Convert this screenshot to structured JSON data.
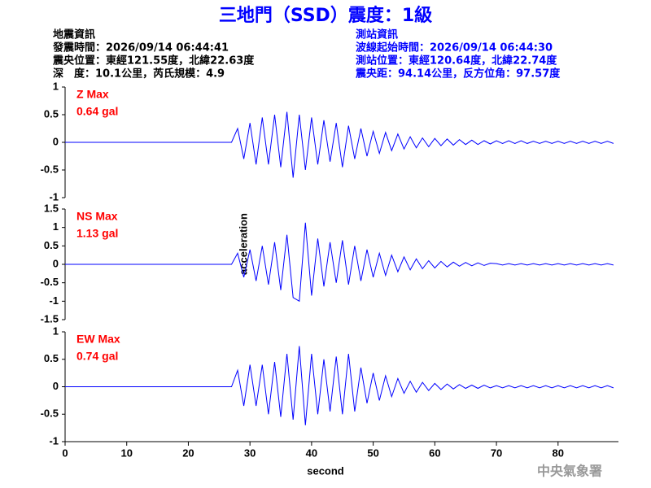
{
  "header": {
    "title": "三地門（SSD）震度：1級",
    "left": [
      "地震資訊",
      "發震時間：2026/09/14 06:44:41",
      "震央位置：東經121.55度，北緯22.63度",
      "深　度：10.1公里，芮氏規模：4.9"
    ],
    "right": [
      "測站資訊",
      "波線起始時間：2026/09/14 06:44:30",
      "測站位置：東經120.64度，北緯22.74度",
      "震央距：94.14公里，反方位角：97.57度"
    ],
    "ylabel": "acceleration",
    "footer": "中央氣象署"
  },
  "chart_data": [
    {
      "type": "line",
      "annotation": [
        "Z Max",
        "0.64 gal"
      ],
      "color": "#0000ff",
      "ylim": [
        -1,
        1
      ],
      "yticks": [
        1,
        0.5,
        0,
        -0.5,
        -1
      ],
      "xlim": [
        0,
        89.8
      ],
      "x": [
        0,
        27,
        28,
        29,
        30,
        31,
        32,
        33,
        34,
        35,
        36,
        37,
        38,
        39,
        40,
        41,
        42,
        43,
        44,
        45,
        46,
        47,
        48,
        49,
        50,
        51,
        52,
        53,
        54,
        55,
        56,
        57,
        58,
        59,
        60,
        61,
        62,
        63,
        64,
        65,
        66,
        67,
        68,
        69,
        70,
        71,
        72,
        73,
        74,
        75,
        76,
        77,
        78,
        79,
        80,
        81,
        82,
        83,
        84,
        85,
        86,
        87,
        88,
        89
      ],
      "values": [
        0,
        0,
        0.25,
        -0.3,
        0.35,
        -0.4,
        0.45,
        -0.4,
        0.5,
        -0.45,
        0.55,
        -0.64,
        0.5,
        -0.5,
        0.45,
        -0.4,
        0.4,
        -0.35,
        0.35,
        -0.45,
        0.3,
        -0.3,
        0.25,
        -0.25,
        0.2,
        -0.2,
        0.18,
        -0.15,
        0.15,
        -0.12,
        0.1,
        -0.1,
        0.08,
        -0.08,
        0.07,
        -0.06,
        0.06,
        -0.05,
        0.05,
        -0.04,
        0.04,
        -0.04,
        0.03,
        -0.03,
        0.03,
        -0.02,
        0.03,
        -0.02,
        0.03,
        -0.02,
        0.02,
        -0.02,
        0.02,
        -0.02,
        0.02,
        -0.02,
        0.02,
        -0.02,
        0.02,
        -0.02,
        0.02,
        -0.02,
        0.02,
        -0.02
      ]
    },
    {
      "type": "line",
      "annotation": [
        "NS Max",
        "1.13 gal"
      ],
      "color": "#0000ff",
      "ylim": [
        -1.5,
        1.5
      ],
      "yticks": [
        1.5,
        1,
        0.5,
        0,
        -0.5,
        -1,
        -1.5
      ],
      "xlim": [
        0,
        89.8
      ],
      "x": [
        0,
        27,
        28,
        29,
        30,
        31,
        32,
        33,
        34,
        35,
        36,
        37,
        38,
        39,
        40,
        41,
        42,
        43,
        44,
        45,
        46,
        47,
        48,
        49,
        50,
        51,
        52,
        53,
        54,
        55,
        56,
        57,
        58,
        59,
        60,
        61,
        62,
        63,
        64,
        65,
        66,
        67,
        68,
        69,
        70,
        71,
        72,
        73,
        74,
        75,
        76,
        77,
        78,
        79,
        80,
        81,
        82,
        83,
        84,
        85,
        86,
        87,
        88,
        89
      ],
      "values": [
        0,
        0,
        0.3,
        -0.35,
        0.4,
        -0.45,
        0.5,
        -0.55,
        0.6,
        -0.7,
        0.8,
        -0.9,
        -1.0,
        1.13,
        -0.85,
        0.7,
        -0.6,
        0.6,
        -0.5,
        0.65,
        -0.55,
        0.5,
        -0.45,
        0.4,
        -0.35,
        0.3,
        -0.3,
        0.25,
        -0.2,
        0.2,
        -0.15,
        0.15,
        -0.12,
        0.1,
        -0.1,
        0.08,
        -0.07,
        0.06,
        -0.05,
        0.05,
        -0.04,
        0.04,
        -0.03,
        0.03,
        0.02,
        -0.02,
        0.02,
        -0.02,
        0.02,
        -0.02,
        0.02,
        -0.02,
        0.02,
        -0.02,
        0.02,
        -0.02,
        0.02,
        -0.02,
        0.02,
        -0.02,
        0.02,
        -0.02,
        0.02,
        -0.02
      ]
    },
    {
      "type": "line",
      "annotation": [
        "EW Max",
        "0.74 gal"
      ],
      "color": "#0000ff",
      "ylim": [
        -1,
        1
      ],
      "yticks": [
        1,
        0.5,
        0,
        -0.5,
        -1
      ],
      "xlim": [
        0,
        89.8
      ],
      "xticks": [
        0,
        10,
        20,
        30,
        40,
        50,
        60,
        70,
        80
      ],
      "xlabel": "second",
      "x": [
        0,
        27,
        28,
        29,
        30,
        31,
        32,
        33,
        34,
        35,
        36,
        37,
        38,
        39,
        40,
        41,
        42,
        43,
        44,
        45,
        46,
        47,
        48,
        49,
        50,
        51,
        52,
        53,
        54,
        55,
        56,
        57,
        58,
        59,
        60,
        61,
        62,
        63,
        64,
        65,
        66,
        67,
        68,
        69,
        70,
        71,
        72,
        73,
        74,
        75,
        76,
        77,
        78,
        79,
        80,
        81,
        82,
        83,
        84,
        85,
        86,
        87,
        88,
        89
      ],
      "values": [
        0,
        0,
        0.3,
        -0.35,
        0.4,
        -0.35,
        0.4,
        -0.5,
        0.45,
        -0.55,
        0.6,
        -0.6,
        0.74,
        -0.7,
        0.6,
        -0.5,
        0.5,
        -0.45,
        0.55,
        -0.5,
        0.6,
        -0.45,
        0.35,
        -0.3,
        0.25,
        -0.25,
        0.2,
        -0.18,
        0.15,
        -0.12,
        0.1,
        -0.1,
        0.08,
        -0.07,
        0.06,
        -0.05,
        0.05,
        -0.04,
        0.04,
        -0.03,
        0.03,
        -0.03,
        0.03,
        -0.02,
        0.02,
        -0.02,
        0.02,
        -0.02,
        0.02,
        -0.02,
        0.02,
        -0.02,
        0.02,
        -0.02,
        0.02,
        -0.02,
        0.02,
        -0.02,
        0.02,
        -0.02,
        0.02,
        -0.02,
        0.02,
        -0.02
      ]
    }
  ]
}
